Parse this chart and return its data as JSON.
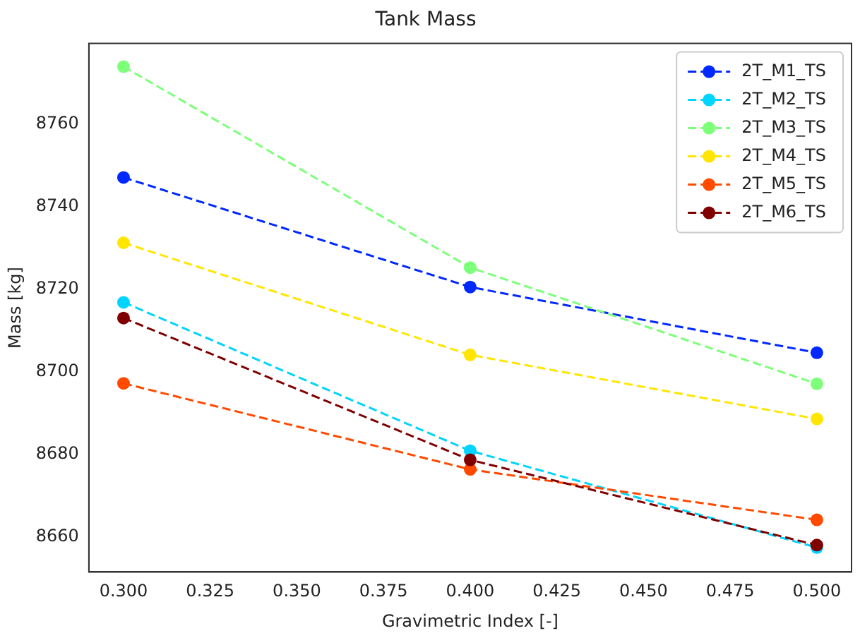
{
  "chart_data": {
    "type": "line",
    "title": "Tank Mass",
    "xlabel": "Gravimetric Index [-]",
    "ylabel": "Mass [kg]",
    "x": [
      0.3,
      0.4,
      0.5
    ],
    "series": [
      {
        "name": "2T_M1_TS",
        "color": "#0028ff",
        "values": [
          8747.0,
          8720.5,
          8704.6
        ]
      },
      {
        "name": "2T_M2_TS",
        "color": "#00d4ff",
        "values": [
          8716.8,
          8680.9,
          8657.5
        ]
      },
      {
        "name": "2T_M3_TS",
        "color": "#7dff7a",
        "values": [
          8773.8,
          8725.2,
          8697.1
        ]
      },
      {
        "name": "2T_M4_TS",
        "color": "#ffe600",
        "values": [
          8731.2,
          8704.1,
          8688.6
        ]
      },
      {
        "name": "2T_M5_TS",
        "color": "#ff4a00",
        "values": [
          8697.2,
          8676.4,
          8664.2
        ]
      },
      {
        "name": "2T_M6_TS",
        "color": "#800000",
        "values": [
          8713.0,
          8678.7,
          8658.1
        ]
      }
    ],
    "xlim": [
      0.29,
      0.51
    ],
    "xticks": [
      {
        "value": 0.3,
        "label": "0.300"
      },
      {
        "value": 0.325,
        "label": "0.325"
      },
      {
        "value": 0.35,
        "label": "0.350"
      },
      {
        "value": 0.375,
        "label": "0.375"
      },
      {
        "value": 0.4,
        "label": "0.400"
      },
      {
        "value": 0.425,
        "label": "0.425"
      },
      {
        "value": 0.45,
        "label": "0.450"
      },
      {
        "value": 0.475,
        "label": "0.475"
      },
      {
        "value": 0.5,
        "label": "0.500"
      }
    ],
    "ylim": [
      8651.6,
      8779.4
    ],
    "yticks": [
      8660,
      8680,
      8700,
      8720,
      8740,
      8760
    ],
    "grid": false,
    "legend": "top right",
    "marker": "circle",
    "line_style": "dashed"
  }
}
